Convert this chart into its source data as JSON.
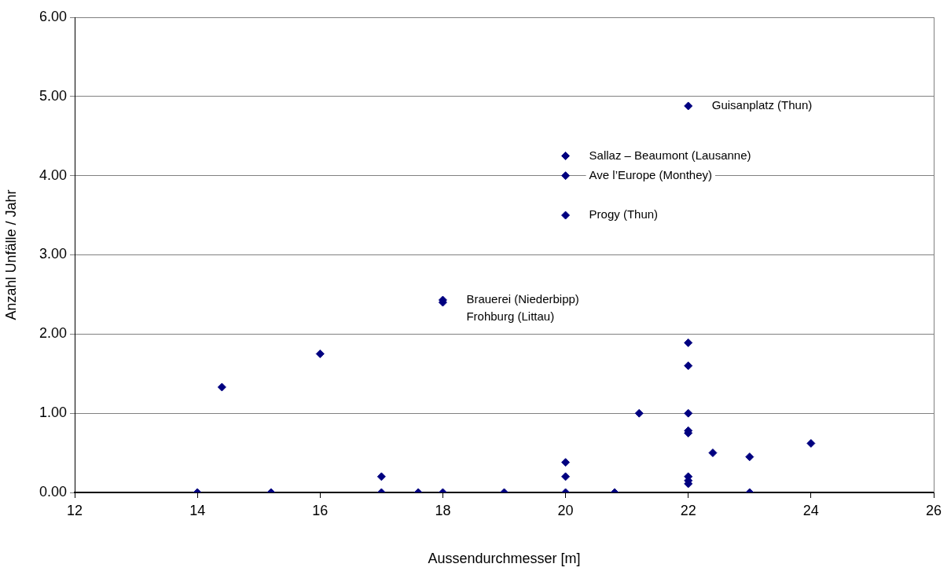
{
  "chart_data": {
    "type": "scatter",
    "xlabel": "Aussendurchmesser [m]",
    "ylabel": "Anzahl Unfälle / Jahr",
    "x": [
      14,
      14.4,
      15.2,
      16,
      17,
      17,
      17.6,
      18,
      18,
      18,
      19,
      20,
      20,
      20,
      20,
      20,
      20,
      20.8,
      21.2,
      22,
      22,
      22,
      22,
      22,
      22,
      22,
      22,
      22,
      22.4,
      23,
      23,
      24
    ],
    "series": [
      {
        "color": "#000080",
        "values": [
          0,
          1.33,
          0,
          1.75,
          0.2,
          0,
          0,
          0,
          2.43,
          2.4,
          0,
          0,
          0.2,
          0.38,
          3.5,
          4.0,
          4.25,
          0,
          1.0,
          4.88,
          1.89,
          1.6,
          1.0,
          0.78,
          0.75,
          0.2,
          0.15,
          0.11,
          0.5,
          0.45,
          0,
          0.62
        ]
      }
    ],
    "marker": "diamond",
    "grid": "y",
    "legend": false,
    "xlim": [
      12,
      26
    ],
    "xticks": [
      12,
      14,
      16,
      18,
      20,
      22,
      24,
      26
    ],
    "ylim": [
      0,
      6
    ],
    "yticks": [
      {
        "value": 0,
        "label": "0.00"
      },
      {
        "value": 1,
        "label": "1.00"
      },
      {
        "value": 2,
        "label": "2.00"
      },
      {
        "value": 3,
        "label": "3.00"
      },
      {
        "value": 4,
        "label": "4.00"
      },
      {
        "value": 5,
        "label": "5.00"
      },
      {
        "value": 6,
        "label": "6.00"
      }
    ],
    "annotations": [
      {
        "text": "Guisanplatz (Thun)",
        "x": 22,
        "y": 4.88
      },
      {
        "text": "Sallaz – Beaumont (Lausanne)",
        "x": 20,
        "y": 4.25
      },
      {
        "text": "Ave l’Europe (Monthey)",
        "x": 20,
        "y": 4.0
      },
      {
        "text": "Progy (Thun)",
        "x": 20,
        "y": 3.5
      },
      {
        "text": "Brauerei (Niederbipp)",
        "x": 18,
        "y": 2.43
      },
      {
        "text": "Frohburg (Littau)",
        "x": 18,
        "y": 2.4
      }
    ]
  }
}
